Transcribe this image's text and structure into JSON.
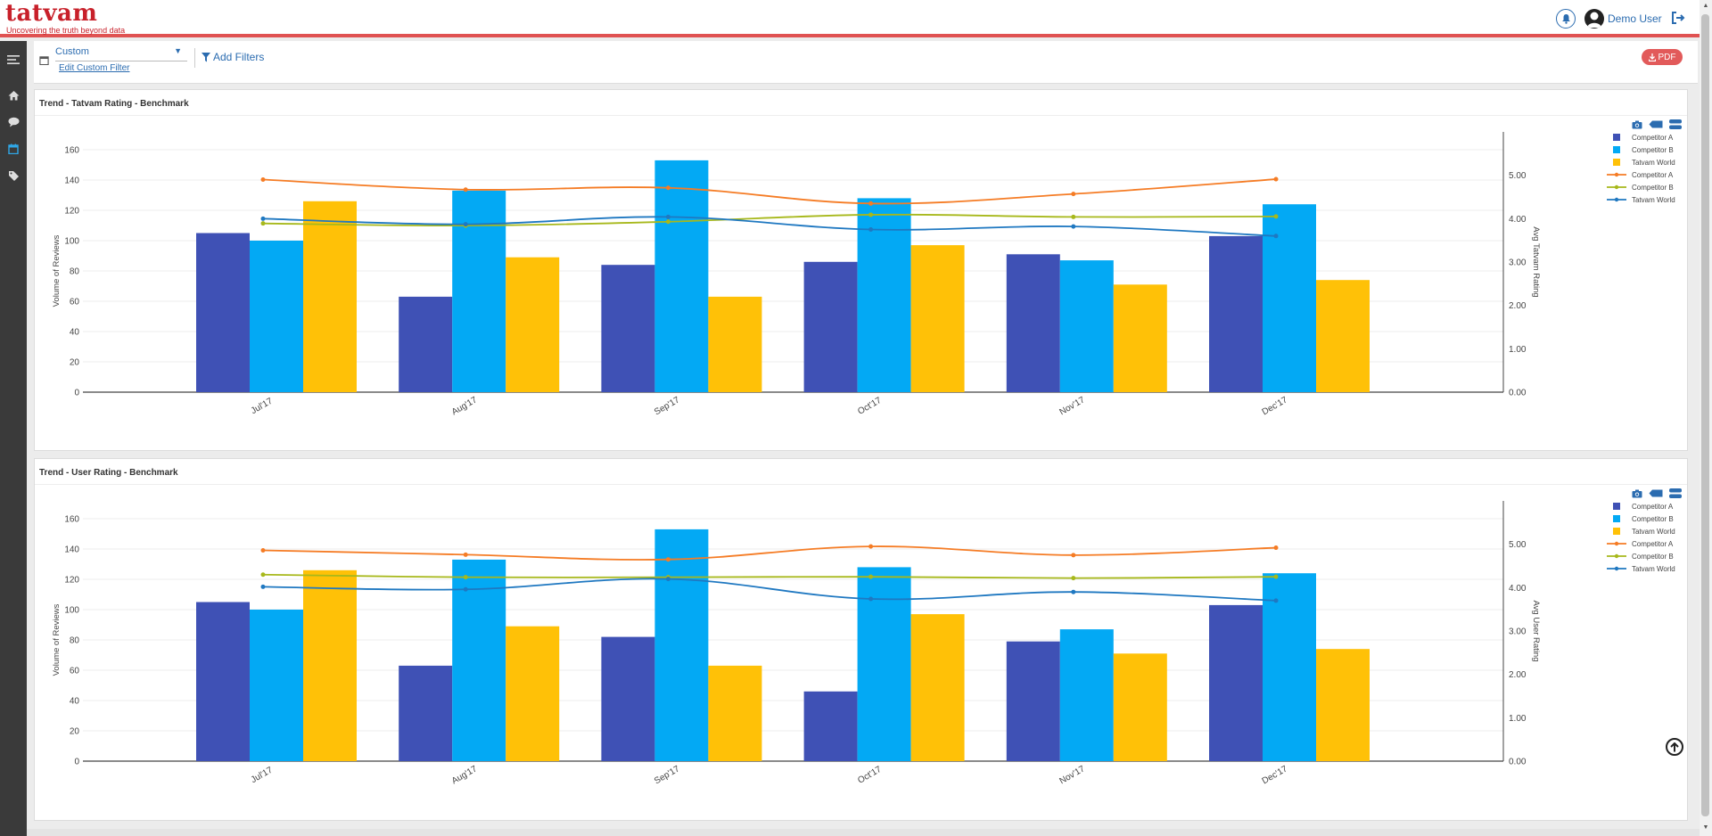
{
  "app": {
    "logo_text": "tatvam",
    "tagline": "Uncovering the truth beyond data",
    "user_name": "Demo User"
  },
  "icons": {
    "bell": "bell-icon",
    "avatar": "user-avatar",
    "logout": "logout-icon",
    "menu": "hamburger-icon",
    "home": "home-icon",
    "chat": "chat-icon",
    "calendar": "calendar-icon",
    "tag": "tag-icon",
    "filter": "filter-icon",
    "download": "download-icon",
    "camera": "camera-icon",
    "back_to_top": "arrow-up-circle-icon"
  },
  "filters": {
    "date_select": "Custom",
    "edit_link": "Edit Custom Filter",
    "add_filters": "Add Filters",
    "pdf_label": "PDF"
  },
  "colors": {
    "brand": "#c8202a",
    "accent": "#2b6cb0",
    "bar_a": "#3f51b5",
    "bar_b": "#03a9f4",
    "bar_world": "#ffc107",
    "line_a": "#f57c25",
    "line_b": "#a7b81b",
    "line_world": "#1f78c1"
  },
  "chart_data": [
    {
      "type": "bar",
      "title": "Trend - Tatvam Rating - Benchmark",
      "ylabel": "Volume of Reviews",
      "y2label": "Avg Tatvam Rating",
      "ylim": [
        0,
        160
      ],
      "y2lim": [
        0,
        6
      ],
      "y_ticks": [
        0,
        20,
        40,
        60,
        80,
        100,
        120,
        140,
        160
      ],
      "y2_ticks": [
        "0.00",
        "1.00",
        "2.00",
        "3.00",
        "4.00",
        "5.00"
      ],
      "categories": [
        "Jul'17",
        "Aug'17",
        "Sep'17",
        "Oct'17",
        "Nov'17",
        "Dec'17"
      ],
      "legend": [
        "Competitor A",
        "Competitor B",
        "Tatvam World",
        "Competitor A",
        "Competitor B",
        "Tatvam World"
      ],
      "bar_series": [
        {
          "name": "Competitor A",
          "values": [
            105,
            63,
            84,
            86,
            91,
            103
          ]
        },
        {
          "name": "Competitor B",
          "values": [
            100,
            133,
            153,
            128,
            87,
            124
          ]
        },
        {
          "name": "Tatvam World",
          "values": [
            126,
            89,
            63,
            97,
            71,
            74
          ]
        }
      ],
      "line_series": [
        {
          "name": "Competitor A",
          "values": [
            4.9,
            4.67,
            4.71,
            4.35,
            4.57,
            4.91
          ]
        },
        {
          "name": "Competitor B",
          "values": [
            3.89,
            3.84,
            3.93,
            4.09,
            4.04,
            4.05
          ]
        },
        {
          "name": "Tatvam World",
          "values": [
            4.0,
            3.87,
            4.04,
            3.75,
            3.82,
            3.6
          ]
        }
      ]
    },
    {
      "type": "bar",
      "title": "Trend - User Rating - Benchmark",
      "ylabel": "Volume of Reviews",
      "y2label": "Avg User Rating",
      "ylim": [
        0,
        160
      ],
      "y2lim": [
        0,
        6
      ],
      "y_ticks": [
        0,
        20,
        40,
        60,
        80,
        100,
        120,
        140,
        160
      ],
      "y2_ticks": [
        "0.00",
        "1.00",
        "2.00",
        "3.00",
        "4.00",
        "5.00"
      ],
      "categories": [
        "Jul'17",
        "Aug'17",
        "Sep'17",
        "Oct'17",
        "Nov'17",
        "Dec'17"
      ],
      "legend": [
        "Competitor A",
        "Competitor B",
        "Tatvam World",
        "Competitor A",
        "Competitor B",
        "Tatvam World"
      ],
      "bar_series": [
        {
          "name": "Competitor A",
          "values": [
            105,
            63,
            82,
            46,
            79,
            103
          ]
        },
        {
          "name": "Competitor B",
          "values": [
            100,
            133,
            153,
            128,
            87,
            124
          ]
        },
        {
          "name": "Tatvam World",
          "values": [
            126,
            89,
            63,
            97,
            71,
            74
          ]
        }
      ],
      "line_series": [
        {
          "name": "Competitor A",
          "values": [
            4.86,
            4.76,
            4.65,
            4.95,
            4.75,
            4.92
          ]
        },
        {
          "name": "Competitor B",
          "values": [
            4.3,
            4.24,
            4.24,
            4.25,
            4.22,
            4.25
          ]
        },
        {
          "name": "Tatvam World",
          "values": [
            4.02,
            3.96,
            4.2,
            3.74,
            3.9,
            3.7
          ]
        }
      ]
    }
  ]
}
